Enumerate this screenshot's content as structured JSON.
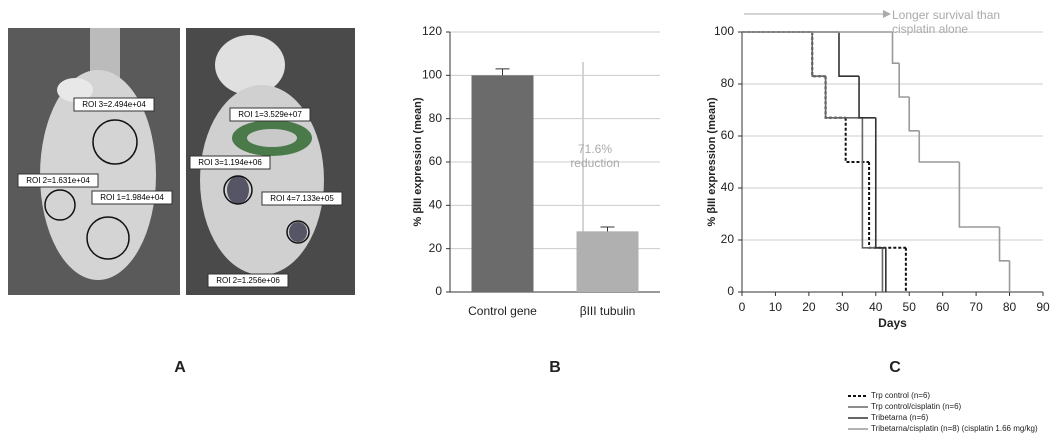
{
  "image_panel": {
    "panel_label": "A",
    "rois": [
      "ROI 3=2.494e+04",
      "ROI 2=1.631e+04",
      "ROI 1=1.984e+04",
      "ROI 1=3.529e+07",
      "ROI 3=1.194e+06",
      "ROI 4=7.133e+05",
      "ROI 2=1.256e+06"
    ]
  },
  "chart_data": [
    {
      "type": "bar",
      "panel_label": "B",
      "ylabel": "% βIII expression (mean)",
      "categories": [
        "Control gene",
        "βIII tubulin"
      ],
      "values": [
        100,
        28
      ],
      "errors": [
        3,
        2
      ],
      "colors": [
        "#6b6b6b",
        "#b0b0b0"
      ],
      "ylim": [
        0,
        120
      ],
      "yticks": [
        0,
        20,
        40,
        60,
        80,
        100,
        120
      ],
      "grid": true,
      "annotation": "71.6% reduction"
    },
    {
      "type": "step",
      "panel_label": "C",
      "ylabel": "% βIII expression (mean)",
      "xlabel": "Days",
      "xlim": [
        0,
        90
      ],
      "xticks": [
        0,
        10,
        20,
        30,
        40,
        50,
        60,
        70,
        80,
        90
      ],
      "ylim": [
        0,
        100
      ],
      "yticks": [
        0,
        20,
        40,
        60,
        80,
        100
      ],
      "grid": true,
      "annotation": "Longer survival than cisplatin alone",
      "series": [
        {
          "name": "Trp control (n=6)",
          "color": "#111111",
          "dash": true,
          "x": [
            0,
            21,
            25,
            31,
            38,
            49
          ],
          "values": [
            100,
            83,
            67,
            50,
            17,
            0
          ]
        },
        {
          "name": "Trp control/cisplatin (n=6)",
          "color": "#666666",
          "dash": false,
          "x": [
            0,
            21,
            25,
            36,
            42
          ],
          "values": [
            100,
            83,
            67,
            17,
            0
          ]
        },
        {
          "name": "Tribetarna (n=6)",
          "color": "#333333",
          "dash": false,
          "x": [
            0,
            29,
            35,
            40,
            43
          ],
          "values": [
            100,
            83,
            67,
            17,
            0
          ]
        },
        {
          "name": "Tribetarna/cisplatin (n=8)  (cisplatin 1.66 mg/kg)",
          "color": "#9a9a9a",
          "dash": false,
          "x": [
            0,
            45,
            47,
            50,
            53,
            65,
            77,
            80
          ],
          "values": [
            100,
            88,
            75,
            62,
            50,
            25,
            12,
            0
          ]
        }
      ]
    }
  ]
}
